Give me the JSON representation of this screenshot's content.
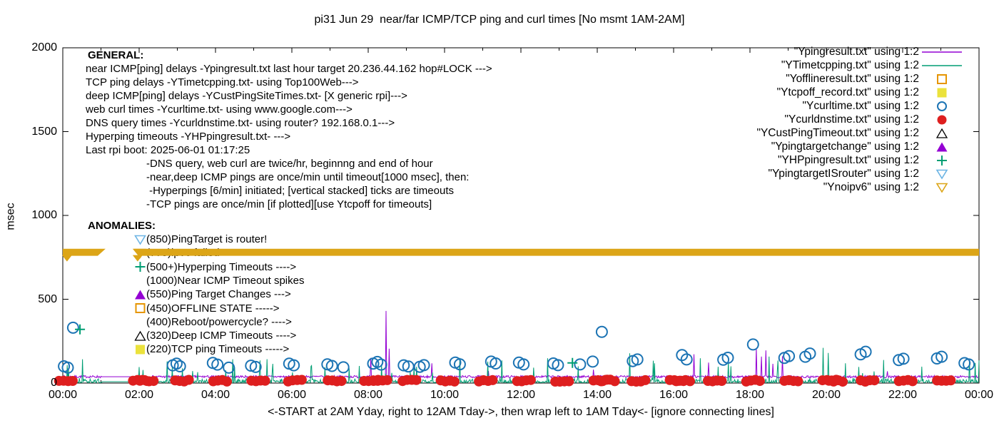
{
  "title": "pi31 Jun 29  near/far ICMP/TCP ping and curl times [No msmt 1AM-2AM]",
  "axes": {
    "y_label": "msec",
    "y_ticks": [
      0,
      500,
      1000,
      1500,
      2000
    ],
    "y_max": 2000,
    "x_hours": 24,
    "x_tick_labels": [
      "00:00",
      "02:00",
      "04:00",
      "06:00",
      "08:00",
      "10:00",
      "12:00",
      "14:00",
      "16:00",
      "18:00",
      "20:00",
      "22:00",
      "00:00"
    ],
    "x_caption": "<-START at 2AM Yday, right to 12AM Tday->, then wrap left to 1AM Tday<- [ignore connecting lines]"
  },
  "colors": {
    "purple": "#9400D3",
    "teal": "#009E73",
    "blue": "#1C74B4",
    "red": "#DE1F1F",
    "orange": "#E69500",
    "yellow": "#EBE23C",
    "sky": "#6CB4E4",
    "gold": "#DCA517",
    "black": "#000000"
  },
  "legend": {
    "items": [
      {
        "label": "\"Ypingresult.txt\" using 1:2",
        "marker": "purple-line"
      },
      {
        "label": "\"YTimetcpping.txt\" using 1:2",
        "marker": "teal-line"
      },
      {
        "label": "\"Yofflineresult.txt\" using 1:2",
        "marker": "orange-open-square"
      },
      {
        "label": "\"Ytcpoff_record.txt\" using 1:2",
        "marker": "yellow-square"
      },
      {
        "label": "\"Ycurltime.txt\" using 1:2",
        "marker": "blue-open-circle"
      },
      {
        "label": "\"Ycurldnstime.txt\" using 1:2",
        "marker": "red-circle"
      },
      {
        "label": "\"YCustPingTimeout.txt\" using 1:2",
        "marker": "black-open-triangle"
      },
      {
        "label": "\"Ypingtargetchange\" using 1:2",
        "marker": "purple-triangle"
      },
      {
        "label": "\"YHPpingresult.txt\" using 1:2",
        "marker": "teal-plus"
      },
      {
        "label": "\"YpingtargetISrouter\" using 1:2",
        "marker": "sky-down-triangle"
      },
      {
        "label": "\"Ynoipv6\" using 1:2",
        "marker": "gold-down-triangle"
      }
    ]
  },
  "annotations": {
    "general": {
      "header": "GENERAL:",
      "lines": [
        "near ICMP[ping] delays -Ypingresult.txt last hour target 20.236.44.162 hop#LOCK --->",
        "TCP ping delays -YTimetcpping.txt- using Top100Web--->",
        "deep ICMP[ping] delays -YCustPingSiteTimes.txt- [X generic rpi]--->",
        "web curl times -Ycurltime.txt- using www.google.com--->",
        "DNS query times -Ycurldnstime.txt- using router? 192.168.0.1--->",
        "Hyperping timeouts -YHPpingresult.txt- --->",
        "Last rpi boot: 2025-06-01 01:17:25"
      ],
      "notes": [
        "-DNS query, web curl are twice/hr, beginnng and end of hour",
        "-near,deep ICMP pings are once/min until timeout[1000 msec], then:",
        " -Hyperpings [6/min] initiated; [vertical stacked] ticks are timeouts",
        "-TCP pings are once/min [if plotted][use Ytcpoff for timeouts]"
      ]
    },
    "anomalies": {
      "header": "ANOMALIES:",
      "items": [
        {
          "marker": "sky-down-triangle",
          "text": "(850)PingTarget is router!"
        },
        {
          "marker": "gold-down-triangle",
          "text": "(775)ipv6 failed ->"
        },
        {
          "marker": "teal-plus",
          "text": "(500+)Hyperping Timeouts ---->"
        },
        {
          "marker": "none",
          "text": "(1000)Near ICMP Timeout spikes"
        },
        {
          "marker": "purple-triangle",
          "text": "(550)Ping Target Changes --->"
        },
        {
          "marker": "orange-open-square",
          "text": "(450)OFFLINE STATE ----->"
        },
        {
          "marker": "none",
          "text": "(400)Reboot/powercycle? ---->"
        },
        {
          "marker": "black-open-triangle",
          "text": "(320)Deep ICMP Timeouts ---->"
        },
        {
          "marker": "yellow-square",
          "text": "(220)TCP ping Timeouts ----->"
        }
      ]
    }
  },
  "chart_data": {
    "type": "line+scatter",
    "x_unit": "hours",
    "x_range": [
      0,
      24
    ],
    "y_range": [
      0,
      2000
    ],
    "grid": false,
    "legend_position": "top-right",
    "series": [
      {
        "name": "Ypingresult.txt",
        "style": "line",
        "color_key": "purple",
        "baseline": 31,
        "jitter": 14,
        "seed": 7,
        "gap_hours": [
          1.0,
          1.93
        ],
        "gap_value": 38,
        "spikes": [
          [
            8.07,
            150
          ],
          [
            8.47,
            430
          ],
          [
            8.55,
            205
          ],
          [
            9.67,
            118
          ],
          [
            11.15,
            72
          ],
          [
            13.9,
            80
          ],
          [
            16.53,
            172
          ],
          [
            16.92,
            122
          ],
          [
            18.17,
            208
          ],
          [
            18.3,
            158
          ],
          [
            18.42,
            195
          ],
          [
            18.6,
            115
          ],
          [
            18.85,
            160
          ],
          [
            21.6,
            70
          ]
        ]
      },
      {
        "name": "YTimetcpping.txt",
        "style": "line",
        "color_key": "teal",
        "baseline": 2,
        "jitter": 30,
        "seed": 13,
        "spike_chance": 0.025,
        "gap_hours": [
          1.02,
          1.93
        ],
        "gap_value": 8,
        "spikes": [
          [
            0.15,
            88
          ],
          [
            2.1,
            78
          ],
          [
            3.4,
            72
          ],
          [
            4.5,
            95
          ],
          [
            5.5,
            115
          ],
          [
            6.5,
            100
          ],
          [
            7.5,
            88
          ],
          [
            8.35,
            108
          ],
          [
            9.2,
            95
          ],
          [
            10.4,
            150
          ],
          [
            11.5,
            135
          ],
          [
            12.7,
            148
          ],
          [
            13.5,
            100
          ],
          [
            14.85,
            178
          ],
          [
            15.5,
            118
          ],
          [
            16.7,
            148
          ],
          [
            17.5,
            100
          ],
          [
            18.5,
            158
          ],
          [
            19.92,
            210
          ],
          [
            20.05,
            180
          ],
          [
            20.5,
            118
          ],
          [
            21.5,
            138
          ],
          [
            22.5,
            98
          ],
          [
            23.75,
            145
          ],
          [
            23.9,
            120
          ]
        ]
      },
      {
        "name": "Ycurltime.txt",
        "style": "open-circle",
        "color_key": "blue",
        "points": [
          [
            0.03,
            100
          ],
          [
            0.13,
            92
          ],
          [
            0.27,
            330
          ],
          [
            2.88,
            106
          ],
          [
            2.98,
            116
          ],
          [
            3.07,
            100
          ],
          [
            3.93,
            120
          ],
          [
            4.05,
            110
          ],
          [
            4.35,
            92
          ],
          [
            4.93,
            104
          ],
          [
            5.05,
            96
          ],
          [
            5.93,
            116
          ],
          [
            6.05,
            106
          ],
          [
            6.93,
            112
          ],
          [
            7.05,
            102
          ],
          [
            7.35,
            94
          ],
          [
            8.13,
            116
          ],
          [
            8.24,
            126
          ],
          [
            8.34,
            110
          ],
          [
            8.93,
            106
          ],
          [
            9.05,
            99
          ],
          [
            9.35,
            97
          ],
          [
            9.46,
            107
          ],
          [
            10.28,
            122
          ],
          [
            10.4,
            112
          ],
          [
            11.22,
            128
          ],
          [
            11.34,
            117
          ],
          [
            11.95,
            122
          ],
          [
            12.07,
            111
          ],
          [
            12.85,
            117
          ],
          [
            12.97,
            107
          ],
          [
            13.55,
            111
          ],
          [
            13.88,
            128
          ],
          [
            14.12,
            305
          ],
          [
            14.93,
            131
          ],
          [
            15.05,
            141
          ],
          [
            16.22,
            167
          ],
          [
            16.34,
            141
          ],
          [
            17.3,
            139
          ],
          [
            17.42,
            151
          ],
          [
            18.08,
            230
          ],
          [
            18.9,
            150
          ],
          [
            19.02,
            161
          ],
          [
            19.45,
            157
          ],
          [
            19.57,
            176
          ],
          [
            20.9,
            171
          ],
          [
            21.03,
            187
          ],
          [
            21.9,
            137
          ],
          [
            22.02,
            145
          ],
          [
            22.9,
            147
          ],
          [
            23.02,
            157
          ],
          [
            23.62,
            119
          ],
          [
            23.73,
            111
          ]
        ]
      },
      {
        "name": "Ycurldnstime.txt",
        "style": "dot-cluster",
        "color_key": "red",
        "base_value": 13,
        "seed": 21,
        "cluster_centers": [
          0.08,
          2.02,
          2.2,
          3.12,
          4.12,
          5.12,
          6.08,
          7.12,
          8.07,
          8.32,
          9.08,
          10.08,
          11.08,
          12.08,
          13.08,
          14.08,
          14.28,
          15.08,
          16.08,
          16.25,
          17.08,
          18.08,
          19.08,
          20.08,
          20.25,
          21.08,
          22.08,
          23.08
        ],
        "dot_offsets": [
          -0.18,
          -0.06,
          0.06,
          0.18
        ]
      },
      {
        "name": "YHPpingresult.txt",
        "style": "plus",
        "color_key": "teal",
        "points": [
          [
            0.45,
            320
          ],
          [
            13.35,
            120
          ]
        ]
      },
      {
        "name": "Ynoipv6",
        "style": "band",
        "color_key": "gold",
        "value": 780,
        "half_width_msec": 21,
        "segments_hours": [
          [
            0,
            1.12
          ],
          [
            1.83,
            24
          ]
        ],
        "tip_hours": [
          0.11,
          1.96
        ]
      }
    ]
  }
}
